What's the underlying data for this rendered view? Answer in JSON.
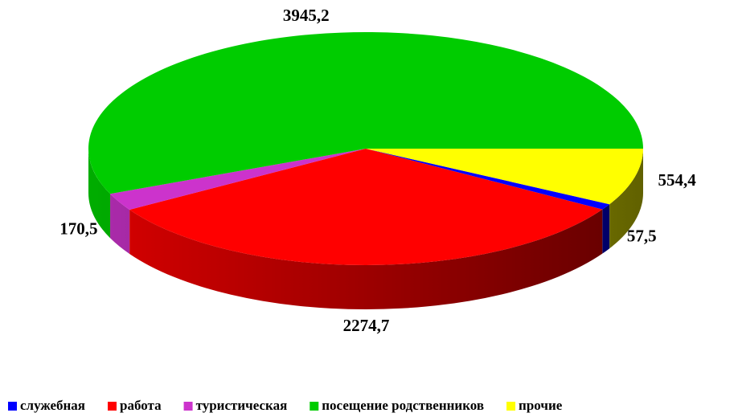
{
  "chart_data": {
    "type": "pie",
    "categories": [
      "служебная",
      "работа",
      "туристическая",
      "посещение родственников",
      "прочие"
    ],
    "values": [
      57.5,
      2274.7,
      170.5,
      3945.2,
      554.4
    ],
    "value_labels": [
      "57,5",
      "2274,7",
      "170,5",
      "3945,2",
      "554,4"
    ],
    "colors": [
      "#0000ff",
      "#ff0000",
      "#cc33cc",
      "#00cc00",
      "#ffff00"
    ],
    "legend": "bottom"
  }
}
